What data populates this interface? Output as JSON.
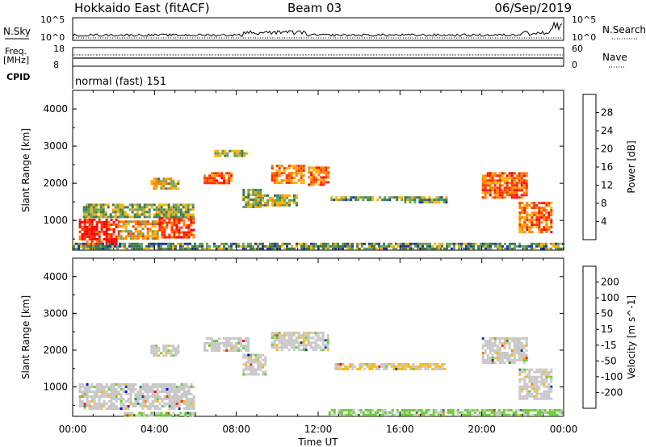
{
  "header": {
    "title": "Hokkaido East (fitACF)",
    "beam": "Beam 03",
    "date": "06/Sep/2019"
  },
  "nsky_panel": {
    "left_label": "N.Sky",
    "left_ticks": [
      "10^5",
      "10^0"
    ],
    "right_ticks": [
      "10^5",
      "10^0"
    ],
    "right_label": "N.Search"
  },
  "freq_panel": {
    "left_label_top": "Freq.",
    "left_label_unit": "[MHz]",
    "left_ticks": [
      "18",
      "8"
    ],
    "right_ticks": [
      "60",
      "0"
    ],
    "right_label": "Nave"
  },
  "cpid_panel": {
    "label": "CPID",
    "mode_text": "normal (fast) 151"
  },
  "time_axis": {
    "ticks": [
      "00:00",
      "04:00",
      "08:00",
      "12:00",
      "16:00",
      "20:00",
      "00:00"
    ],
    "label": "Time UT"
  },
  "colors": {
    "power_scale": [
      "#0000ff",
      "#1f3aa0",
      "#3d7a4c",
      "#6aa05a",
      "#ffb000",
      "#ff8000",
      "#ff3000",
      "#ff0000"
    ],
    "velocity_scale": [
      "#ff0000",
      "#ff3000",
      "#ff8000",
      "#ffb800",
      "#c8c8c8",
      "#66cc33",
      "#2e8b57",
      "#1f3aa0",
      "#0000ff"
    ]
  },
  "chart_data": [
    {
      "type": "heatmap",
      "panel": "power",
      "ylabel": "Slant Range [km]",
      "yticks": [
        "1000",
        "2000",
        "3000",
        "4000"
      ],
      "ylim": [
        200,
        4500
      ],
      "xlim": [
        0,
        24
      ],
      "colorbar": {
        "label": "Power [dB]",
        "ticks": [
          "4",
          "8",
          "12",
          "16",
          "20",
          "24",
          "28"
        ],
        "range": [
          0,
          32
        ]
      },
      "regions": [
        {
          "t0": 0.3,
          "t1": 2.2,
          "r0": 280,
          "r1": 1050,
          "value": 29
        },
        {
          "t0": 2.2,
          "t1": 4.2,
          "r0": 450,
          "r1": 1000,
          "value": 20
        },
        {
          "t0": 4.2,
          "t1": 6.0,
          "r0": 500,
          "r1": 1100,
          "value": 26
        },
        {
          "t0": 0.5,
          "t1": 6.0,
          "r0": 1050,
          "r1": 1450,
          "value": 14
        },
        {
          "t0": 3.8,
          "t1": 5.2,
          "r0": 1800,
          "r1": 2150,
          "value": 17
        },
        {
          "t0": 6.4,
          "t1": 7.8,
          "r0": 1950,
          "r1": 2300,
          "value": 24
        },
        {
          "t0": 6.8,
          "t1": 8.6,
          "r0": 2700,
          "r1": 2900,
          "value": 14
        },
        {
          "t0": 8.3,
          "t1": 9.3,
          "r0": 1300,
          "r1": 1850,
          "value": 14
        },
        {
          "t0": 9.0,
          "t1": 11.0,
          "r0": 1400,
          "r1": 1700,
          "value": 16
        },
        {
          "t0": 9.7,
          "t1": 11.3,
          "r0": 2000,
          "r1": 2500,
          "value": 22
        },
        {
          "t0": 11.5,
          "t1": 12.6,
          "r0": 1950,
          "r1": 2450,
          "value": 23
        },
        {
          "t0": 12.6,
          "t1": 16.2,
          "r0": 1500,
          "r1": 1650,
          "value": 12
        },
        {
          "t0": 16.2,
          "t1": 18.3,
          "r0": 1480,
          "r1": 1650,
          "value": 13
        },
        {
          "t0": 20.0,
          "t1": 22.2,
          "r0": 1600,
          "r1": 2300,
          "value": 24
        },
        {
          "t0": 21.8,
          "t1": 23.5,
          "r0": 650,
          "r1": 1500,
          "value": 23
        },
        {
          "t0": 0.0,
          "t1": 24.0,
          "r0": 200,
          "r1": 400,
          "value": 12
        }
      ]
    },
    {
      "type": "heatmap",
      "panel": "velocity",
      "ylabel": "Slant Range [km]",
      "yticks": [
        "1000",
        "2000",
        "3000",
        "4000"
      ],
      "ylim": [
        200,
        4500
      ],
      "xlim": [
        0,
        24
      ],
      "colorbar": {
        "label": "Velocity [m s^-1]",
        "ticks": [
          "200",
          "100",
          "50",
          "15",
          "-15",
          "-50",
          "-100",
          "-200"
        ],
        "range": [
          -250,
          250
        ]
      },
      "regions": [
        {
          "t0": 0.3,
          "t1": 6.0,
          "r0": 400,
          "r1": 1100,
          "value": 0
        },
        {
          "t0": 3.8,
          "t1": 5.2,
          "r0": 1800,
          "r1": 2150,
          "value": 0
        },
        {
          "t0": 6.4,
          "t1": 8.6,
          "r0": 1950,
          "r1": 2350,
          "value": 0
        },
        {
          "t0": 8.3,
          "t1": 9.5,
          "r0": 1300,
          "r1": 1900,
          "value": 0
        },
        {
          "t0": 9.7,
          "t1": 12.6,
          "r0": 1950,
          "r1": 2500,
          "value": 0
        },
        {
          "t0": 12.8,
          "t1": 18.3,
          "r0": 1480,
          "r1": 1650,
          "value": 30
        },
        {
          "t0": 20.0,
          "t1": 22.2,
          "r0": 1600,
          "r1": 2350,
          "value": 0
        },
        {
          "t0": 21.8,
          "t1": 23.5,
          "r0": 650,
          "r1": 1500,
          "value": 0
        },
        {
          "t0": 2.5,
          "t1": 6.0,
          "r0": 200,
          "r1": 320,
          "value": -40
        },
        {
          "t0": 12.5,
          "t1": 24.0,
          "r0": 200,
          "r1": 400,
          "value": -40
        }
      ]
    }
  ]
}
